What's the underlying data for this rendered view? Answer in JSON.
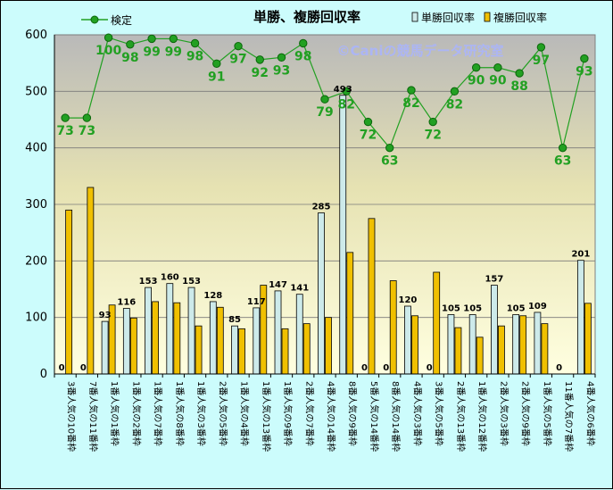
{
  "chart_data": {
    "type": "bar",
    "title": "単勝、複勝回収率",
    "watermark": "©Caniの競馬データ研究室",
    "ylim": [
      0,
      600
    ],
    "yticks": [
      0,
      100,
      200,
      300,
      400,
      500,
      600
    ],
    "grid": true,
    "legend_position": "top",
    "categories": [
      "3番人気の10番枠",
      "7番人気の11番枠",
      "1番人気の1番枠",
      "1番人気の2番枠",
      "1番人気の7番枠",
      "1番人気の8番枠",
      "1番人気の3番枠",
      "2番人気の5番枠",
      "1番人気の4番枠",
      "1番人気の13番枠",
      "1番人気の9番枠",
      "2番人気の7番枠",
      "4番人気の14番枠",
      "8番人気の9番枠",
      "5番人気の14番枠",
      "8番人気の14番枠",
      "4番人気の3番枠",
      "3番人気の5番枠",
      "2番人気の13番枠",
      "1番人気の12番枠",
      "2番人気の3番枠",
      "2番人気の9番枠",
      "1番人気の5番枠",
      "11番人気の7番枠",
      "4番人気の6番枠"
    ],
    "series": [
      {
        "name": "単勝回収率",
        "color": "#cdeaea",
        "values": [
          0,
          0,
          93,
          116,
          153,
          160,
          153,
          128,
          85,
          117,
          147,
          141,
          285,
          493,
          0,
          0,
          120,
          0,
          105,
          105,
          157,
          105,
          109,
          0,
          201
        ]
      },
      {
        "name": "複勝回収率",
        "color": "#f0c000",
        "values": [
          290,
          330,
          122,
          99,
          128,
          126,
          85,
          118,
          80,
          157,
          80,
          89,
          100,
          215,
          275,
          165,
          103,
          180,
          82,
          65,
          85,
          103,
          89,
          0,
          125
        ]
      },
      {
        "name": "検定",
        "color": "#22a022",
        "line_labels": [
          73,
          73,
          100,
          98,
          99,
          99,
          98,
          91,
          97,
          92,
          93,
          98,
          79,
          82,
          72,
          63,
          82,
          72,
          82,
          90,
          90,
          88,
          97,
          63,
          93
        ],
        "line_values": [
          453,
          453,
          595,
          583,
          593,
          593,
          585,
          549,
          580,
          556,
          560,
          585,
          486,
          500,
          446,
          400,
          502,
          446,
          500,
          542,
          542,
          532,
          578,
          400,
          558
        ]
      }
    ]
  }
}
